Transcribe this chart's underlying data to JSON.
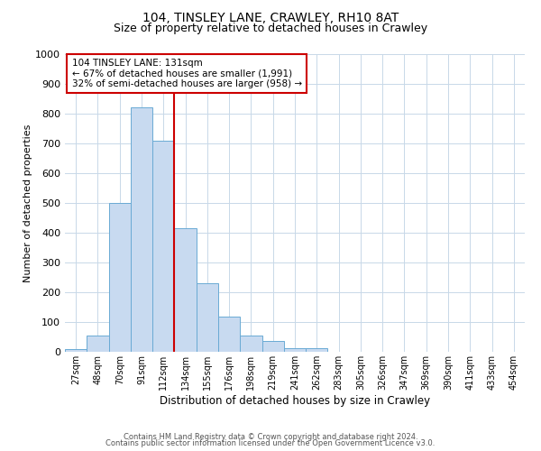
{
  "title": "104, TINSLEY LANE, CRAWLEY, RH10 8AT",
  "subtitle": "Size of property relative to detached houses in Crawley",
  "xlabel": "Distribution of detached houses by size in Crawley",
  "ylabel": "Number of detached properties",
  "bin_labels": [
    "27sqm",
    "48sqm",
    "70sqm",
    "91sqm",
    "112sqm",
    "134sqm",
    "155sqm",
    "176sqm",
    "198sqm",
    "219sqm",
    "241sqm",
    "262sqm",
    "283sqm",
    "305sqm",
    "326sqm",
    "347sqm",
    "369sqm",
    "390sqm",
    "411sqm",
    "433sqm",
    "454sqm"
  ],
  "bar_heights": [
    8,
    55,
    500,
    820,
    710,
    415,
    230,
    118,
    55,
    35,
    12,
    12,
    0,
    0,
    0,
    0,
    0,
    0,
    0,
    0,
    0
  ],
  "bar_color": "#c8daf0",
  "bar_edge_color": "#6aaad4",
  "vline_color": "#cc0000",
  "ylim": [
    0,
    1000
  ],
  "yticks": [
    0,
    100,
    200,
    300,
    400,
    500,
    600,
    700,
    800,
    900,
    1000
  ],
  "annotation_line1": "104 TINSLEY LANE: 131sqm",
  "annotation_line2": "← 67% of detached houses are smaller (1,991)",
  "annotation_line3": "32% of semi-detached houses are larger (958) →",
  "annotation_box_color": "#cc0000",
  "footer_line1": "Contains HM Land Registry data © Crown copyright and database right 2024.",
  "footer_line2": "Contains public sector information licensed under the Open Government Licence v3.0.",
  "background_color": "#ffffff",
  "grid_color": "#c8d8e8",
  "title_fontsize": 10,
  "subtitle_fontsize": 9
}
